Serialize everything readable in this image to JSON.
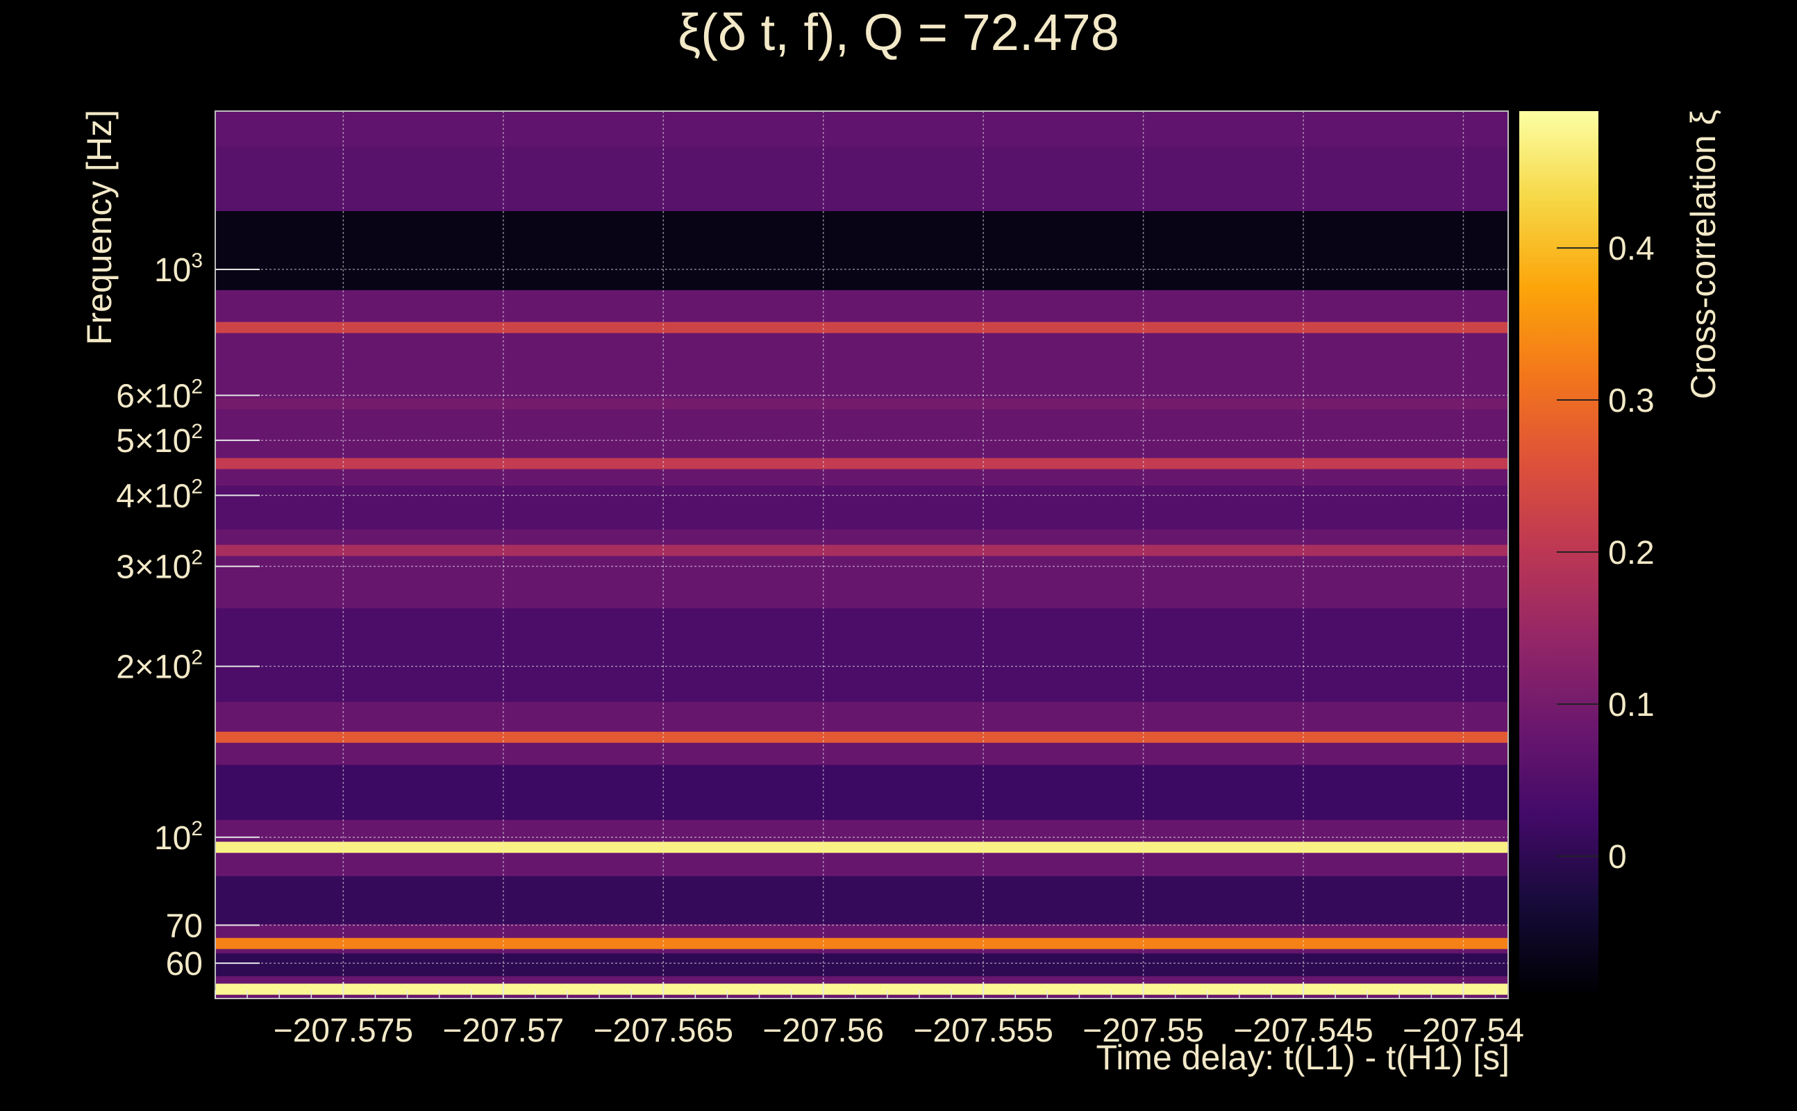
{
  "chart_data": {
    "type": "heatmap",
    "title": "ξ(δ t, f), Q = 72.478",
    "xlabel": "Time delay: t(L1) - t(H1) [s]",
    "ylabel": "Frequency [Hz]",
    "colorbar_label": "Cross-correlation ξ",
    "colormap": "inferno",
    "x_scale": "linear",
    "y_scale": "log",
    "grid": true,
    "xlim": [
      -207.579,
      -207.5386
    ],
    "ylim": [
      52,
      1900
    ],
    "clim": [
      -0.09,
      0.49
    ],
    "x_ticks": [
      {
        "value": -207.575,
        "label": "−207.575"
      },
      {
        "value": -207.57,
        "label": "−207.57"
      },
      {
        "value": -207.565,
        "label": "−207.565"
      },
      {
        "value": -207.56,
        "label": "−207.56"
      },
      {
        "value": -207.555,
        "label": "−207.555"
      },
      {
        "value": -207.55,
        "label": "−207.55"
      },
      {
        "value": -207.545,
        "label": "−207.545"
      },
      {
        "value": -207.54,
        "label": "−207.54"
      }
    ],
    "y_ticks": [
      {
        "value": 60,
        "base": "60",
        "exp": ""
      },
      {
        "value": 70,
        "base": "70",
        "exp": ""
      },
      {
        "value": 100,
        "base": "10",
        "exp": "2"
      },
      {
        "value": 200,
        "base": "2×10",
        "exp": "2"
      },
      {
        "value": 300,
        "base": "3×10",
        "exp": "2"
      },
      {
        "value": 400,
        "base": "4×10",
        "exp": "2"
      },
      {
        "value": 500,
        "base": "5×10",
        "exp": "2"
      },
      {
        "value": 600,
        "base": "6×10",
        "exp": "2"
      },
      {
        "value": 1000,
        "base": "10",
        "exp": "3"
      }
    ],
    "colorbar_ticks": [
      {
        "value": 0,
        "label": "0"
      },
      {
        "value": 0.1,
        "label": "0.1"
      },
      {
        "value": 0.2,
        "label": "0.2"
      },
      {
        "value": 0.3,
        "label": "0.3"
      },
      {
        "value": 0.4,
        "label": "0.4"
      }
    ],
    "bands": [
      {
        "freq": 54,
        "value": 0.48
      },
      {
        "freq": 60,
        "value": 0.0
      },
      {
        "freq": 65,
        "value": 0.33
      },
      {
        "freq": 76,
        "value": 0.01
      },
      {
        "freq": 96,
        "value": 0.47
      },
      {
        "freq": 120,
        "value": 0.02
      },
      {
        "freq": 150,
        "value": 0.27
      },
      {
        "freq": 200,
        "value": 0.04
      },
      {
        "freq": 320,
        "value": 0.17
      },
      {
        "freq": 380,
        "value": 0.05
      },
      {
        "freq": 455,
        "value": 0.21
      },
      {
        "freq": 580,
        "value": 0.1
      },
      {
        "freq": 790,
        "value": 0.23
      },
      {
        "freq": 1070,
        "value": -0.07
      },
      {
        "freq": 1500,
        "value": 0.06
      },
      {
        "freq": 1800,
        "value": 0.07
      }
    ]
  }
}
